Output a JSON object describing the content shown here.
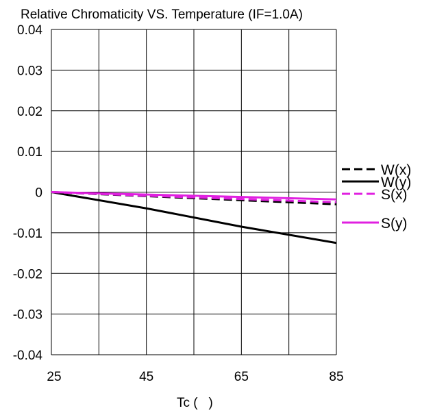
{
  "chart_data": {
    "type": "line",
    "title": "Relative Chromaticity VS. Temperature (IF=1.0A)",
    "xlabel": "Tc (   )",
    "ylabel": "",
    "x": [
      25,
      45,
      65,
      85
    ],
    "xlim": [
      25,
      85
    ],
    "ylim": [
      -0.04,
      0.04
    ],
    "x_ticks": [
      "25",
      "45",
      "65",
      "85"
    ],
    "y_ticks": [
      "0.04",
      "0.03",
      "0.02",
      "0.01",
      "0",
      "-0.01",
      "-0.02",
      "-0.03",
      "-0.04"
    ],
    "grid": true,
    "legend_position": "right",
    "series": [
      {
        "name": "W(x)",
        "values": [
          0,
          -0.001,
          -0.002,
          -0.003
        ],
        "color": "#000000",
        "style": "dashed"
      },
      {
        "name": "W(y)",
        "values": [
          0,
          -0.004,
          -0.0085,
          -0.0125
        ],
        "color": "#000000",
        "style": "solid"
      },
      {
        "name": "S(x)",
        "values": [
          0,
          -0.0009,
          -0.0017,
          -0.0025
        ],
        "color": "#e020e0",
        "style": "dashed"
      },
      {
        "name": "S(y)",
        "values": [
          0,
          -0.0006,
          -0.0012,
          -0.0018
        ],
        "color": "#e020e0",
        "style": "solid"
      }
    ]
  }
}
